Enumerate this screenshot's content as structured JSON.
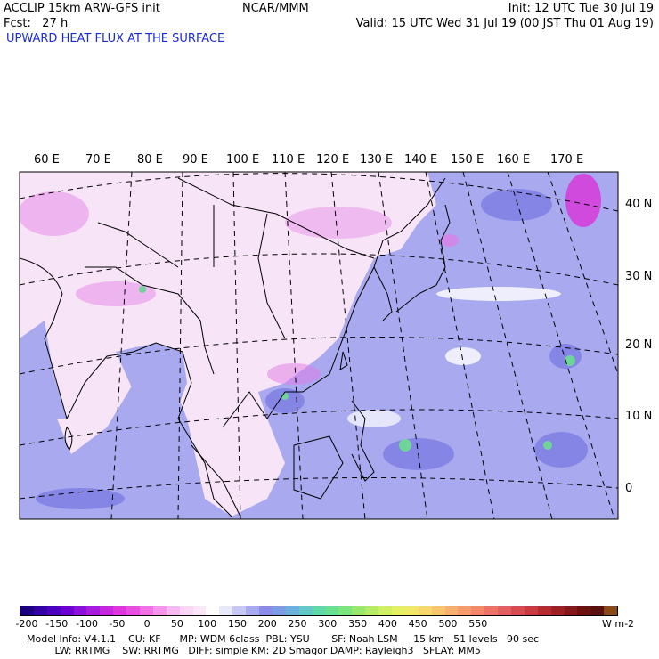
{
  "header": {
    "model": "ACCLIP 15km ARW-GFS init",
    "forecast": "Fcst:   27 h",
    "center": "NCAR/MMM",
    "init": "Init: 12 UTC Tue 30 Jul 19",
    "valid": "Valid: 15 UTC Wed 31 Jul 19 (00 JST Thu 01 Aug 19)",
    "field": "UPWARD HEAT FLUX AT THE SURFACE"
  },
  "map": {
    "lon_labels": [
      "60 E",
      "70 E",
      "80 E",
      "90 E",
      "100 E",
      "110 E",
      "120 E",
      "130 E",
      "140 E",
      "150 E",
      "160 E",
      "170 E"
    ],
    "lat_labels": [
      "40 N",
      "30 N",
      "20 N",
      "10 N",
      "0"
    ],
    "colors": {
      "land_bg": "#f7e4f7",
      "ocean": "#a9a9f0",
      "ocean_dark": "#8585e6",
      "pink": "#e27ae6",
      "magenta": "#d63ad9",
      "green": "#6fd49a",
      "white": "#ffffff"
    }
  },
  "colorbar": {
    "ticks": [
      "-200",
      "-150",
      "-100",
      "-50",
      "0",
      "50",
      "100",
      "150",
      "200",
      "250",
      "300",
      "350",
      "400",
      "450",
      "500",
      "550"
    ],
    "unit": "W m-2",
    "colors": [
      "#1a0080",
      "#3300a6",
      "#4d00c0",
      "#6a00d4",
      "#8a10dc",
      "#a81ce0",
      "#c428e0",
      "#dc36dc",
      "#e84ee0",
      "#f070e6",
      "#f494ec",
      "#f8b8f2",
      "#fbd4f6",
      "#fde6fa",
      "#ffffff",
      "#e8e8fb",
      "#c8c8f6",
      "#a9a9f0",
      "#8c8ce8",
      "#7c9ce6",
      "#6cb0e0",
      "#64c8c8",
      "#60d8a8",
      "#68e090",
      "#7ce47c",
      "#98e870",
      "#b4ec68",
      "#cff064",
      "#e4f064",
      "#f0e868",
      "#f6d86c",
      "#f8c470",
      "#f8b070",
      "#f69c6c",
      "#f28868",
      "#ec7464",
      "#e46060",
      "#d84c50",
      "#c83c40",
      "#b42c30",
      "#9c2024",
      "#84181c",
      "#6c1010",
      "#581010",
      "#8a4a18"
    ]
  },
  "info": {
    "line1": "Model Info: V4.1.1    CU: KF      MP: WDM 6class  PBL: YSU       SF: Noah LSM     15 km   51 levels   90 sec",
    "line2": "         LW: RRTMG    SW: RRTMG   DIFF: simple KM: 2D Smagor DAMP: Rayleigh3   SFLAY: MM5"
  }
}
